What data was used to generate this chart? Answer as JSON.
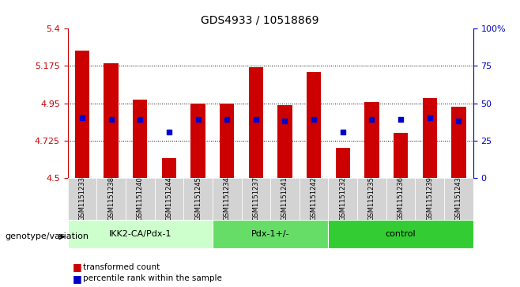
{
  "title": "GDS4933 / 10518869",
  "samples": [
    "GSM1151233",
    "GSM1151238",
    "GSM1151240",
    "GSM1151244",
    "GSM1151245",
    "GSM1151234",
    "GSM1151237",
    "GSM1151241",
    "GSM1151242",
    "GSM1151232",
    "GSM1151235",
    "GSM1151236",
    "GSM1151239",
    "GSM1151243"
  ],
  "bar_values": [
    5.27,
    5.19,
    4.97,
    4.62,
    4.95,
    4.95,
    5.17,
    4.94,
    5.14,
    4.68,
    4.96,
    4.77,
    4.98,
    4.93
  ],
  "percentile_values": [
    4.865,
    4.855,
    4.855,
    4.775,
    4.855,
    4.855,
    4.855,
    4.845,
    4.855,
    4.775,
    4.855,
    4.855,
    4.865,
    4.845
  ],
  "ymin": 4.5,
  "ymax": 5.4,
  "yticks": [
    4.5,
    4.725,
    4.95,
    5.175,
    5.4
  ],
  "right_yticks": [
    0,
    25,
    50,
    75,
    100
  ],
  "bar_color": "#cc0000",
  "point_color": "#0000cc",
  "groups": [
    {
      "label": "IKK2-CA/Pdx-1",
      "start": 0,
      "end": 5,
      "color": "#ccffcc"
    },
    {
      "label": "Pdx-1+/-",
      "start": 5,
      "end": 9,
      "color": "#66dd66"
    },
    {
      "label": "control",
      "start": 9,
      "end": 14,
      "color": "#33cc33"
    }
  ],
  "group_label_prefix": "genotype/variation",
  "legend_items": [
    {
      "label": "transformed count",
      "color": "#cc0000",
      "marker": "s"
    },
    {
      "label": "percentile rank within the sample",
      "color": "#0000cc",
      "marker": "s"
    }
  ],
  "left_axis_color": "#cc0000",
  "right_axis_color": "#0000cc",
  "background_color": "#ffffff",
  "plot_bg_color": "#ffffff"
}
